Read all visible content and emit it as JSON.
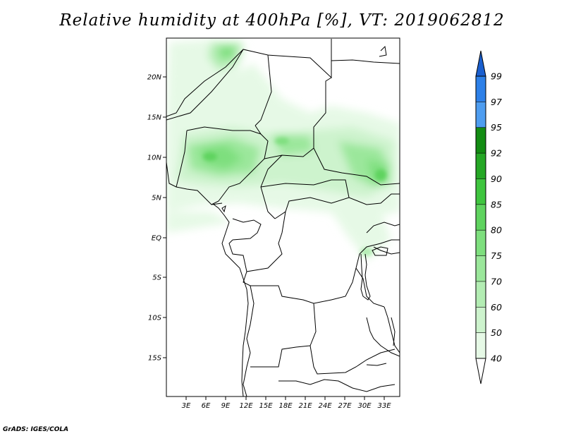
{
  "title": "Relative humidity at 400hPa [%], VT: 2019062812",
  "credit": "GrADS: IGES/COLA",
  "map": {
    "lat_labels": [
      "20N",
      "15N",
      "10N",
      "5N",
      "EQ",
      "5S",
      "10S",
      "15S"
    ],
    "lon_labels": [
      "3E",
      "6E",
      "9E",
      "12E",
      "15E",
      "18E",
      "21E",
      "24E",
      "27E",
      "30E",
      "33E"
    ]
  },
  "colorbar": {
    "levels": [
      "40",
      "50",
      "60",
      "70",
      "75",
      "80",
      "85",
      "90",
      "92",
      "95",
      "97",
      "99"
    ],
    "colors": [
      "#ffffff",
      "#e6f9e6",
      "#cdf3cd",
      "#b3edb3",
      "#9be79b",
      "#7edf7e",
      "#5fd35f",
      "#3fc53f",
      "#25a725",
      "#138c13",
      "#4e9df0",
      "#2d80e8",
      "#1a5fcf"
    ]
  }
}
